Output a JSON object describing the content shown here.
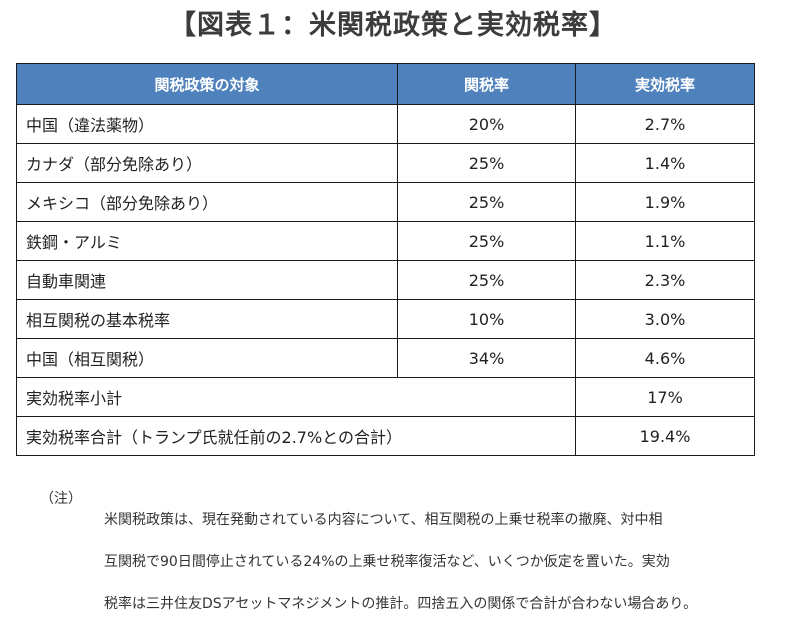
{
  "title": "【図表１：米関税政策と実効税率】",
  "table": {
    "headers": [
      "関税政策の対象",
      "関税率",
      "実効税率"
    ],
    "rows": [
      {
        "target": "中国（違法薬物）",
        "tariff": "20%",
        "effective": "2.7%"
      },
      {
        "target": "カナダ（部分免除あり）",
        "tariff": "25%",
        "effective": "1.4%"
      },
      {
        "target": "メキシコ（部分免除あり）",
        "tariff": "25%",
        "effective": "1.9%"
      },
      {
        "target": "鉄鋼・アルミ",
        "tariff": "25%",
        "effective": "1.1%"
      },
      {
        "target": "自動車関連",
        "tariff": "25%",
        "effective": "2.3%"
      },
      {
        "target": "相互関税の基本税率",
        "tariff": "10%",
        "effective": "3.0%"
      },
      {
        "target": "中国（相互関税）",
        "tariff": "34%",
        "effective": "4.6%"
      }
    ],
    "subtotal": {
      "label": "実効税率小計",
      "value": "17%"
    },
    "total": {
      "label": "実効税率合計（トランプ氏就任前の2.7%との合計）",
      "value": "19.4%"
    }
  },
  "note": {
    "label": "（注）",
    "lines": [
      "米関税政策は、現在発動されている内容について、相互関税の上乗せ税率の撤廃、対中相",
      "互関税で90日間停止されている24%の上乗せ税率復活など、いくつか仮定を置いた。実効",
      "税率は三井住友DSアセットマネジメントの推計。四捨五入の関係で合計が合わない場合あり。"
    ]
  },
  "colors": {
    "header_bg": "#4f81bd",
    "header_text": "#ffffff",
    "border": "#1a1a1a"
  }
}
